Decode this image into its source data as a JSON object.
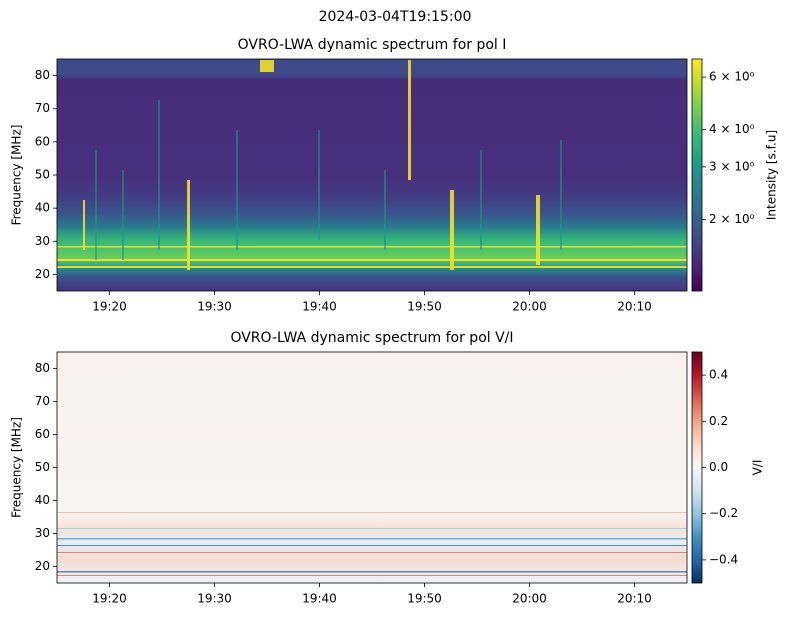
{
  "figure_title": "2024-03-04T19:15:00",
  "chart_data": [
    {
      "type": "heatmap",
      "title": "OVRO-LWA dynamic spectrum for pol I",
      "ylabel": "Frequency [MHz]",
      "xlim": [
        "19:15",
        "20:15"
      ],
      "xticks": [
        "19:20",
        "19:30",
        "19:40",
        "19:50",
        "20:00",
        "20:10"
      ],
      "ylim": [
        15,
        85
      ],
      "yticks": [
        20,
        30,
        40,
        50,
        60,
        70,
        80
      ],
      "colorbar": {
        "label": "Intensity [s.f.u]",
        "scale": "log",
        "lim": [
          1.15,
          6.9
        ],
        "cmap": "viridis",
        "ticks": [
          {
            "value": 2,
            "label": "2 × 10⁰"
          },
          {
            "value": 3,
            "label": "3 × 10⁰"
          },
          {
            "value": 4,
            "label": "4 × 10⁰"
          },
          {
            "value": 6,
            "label": "6 × 10⁰"
          }
        ]
      }
    },
    {
      "type": "heatmap",
      "title": "OVRO-LWA dynamic spectrum for pol V/I",
      "ylabel": "Frequency [MHz]",
      "xlim": [
        "19:15",
        "20:15"
      ],
      "xticks": [
        "19:20",
        "19:30",
        "19:40",
        "19:50",
        "20:00",
        "20:10"
      ],
      "ylim": [
        15,
        85
      ],
      "yticks": [
        20,
        30,
        40,
        50,
        60,
        70,
        80
      ],
      "colorbar": {
        "label": "V/I",
        "scale": "linear",
        "lim": [
          -0.5,
          0.5
        ],
        "cmap": "RdBu_r",
        "ticks": [
          {
            "value": -0.4,
            "label": "−0.4"
          },
          {
            "value": -0.2,
            "label": "−0.2"
          },
          {
            "value": 0,
            "label": "0.0"
          },
          0.2,
          0.4
        ]
      }
    }
  ]
}
